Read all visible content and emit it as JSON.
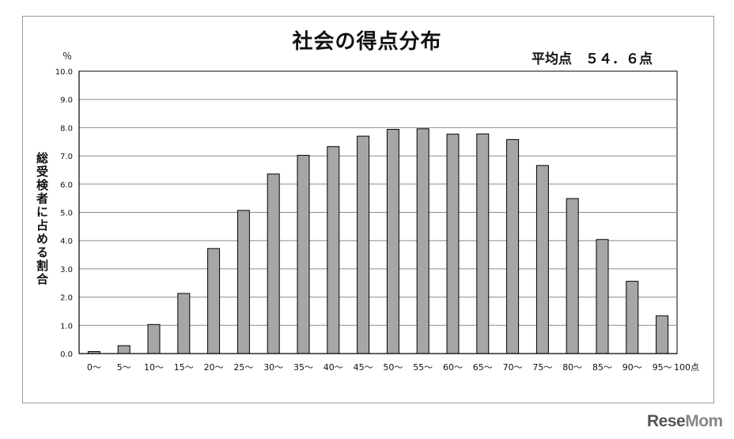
{
  "chart_data": {
    "type": "bar",
    "title": "社会の得点分布",
    "annotation": "平均点　５４．６点",
    "unit_label": "％",
    "ylabel": "総受検者に占める割合",
    "y_ticks": [
      "0.0",
      "1.0",
      "2.0",
      "3.0",
      "4.0",
      "5.0",
      "6.0",
      "7.0",
      "8.0",
      "9.0",
      "10.0"
    ],
    "ylim": [
      0,
      10
    ],
    "grid": true,
    "categories": [
      "0～",
      "5～",
      "10～",
      "15～",
      "20～",
      "25～",
      "30～",
      "35～",
      "40～",
      "45～",
      "50～",
      "55～",
      "60～",
      "65～",
      "70～",
      "75～",
      "80～",
      "85～",
      "90～",
      "95～"
    ],
    "end_label": "100点",
    "values": [
      0.07,
      0.28,
      1.03,
      2.13,
      3.72,
      5.07,
      6.36,
      7.02,
      7.33,
      7.7,
      7.94,
      7.96,
      7.77,
      7.78,
      7.58,
      6.66,
      5.49,
      4.04,
      2.56,
      1.34
    ],
    "colors": {
      "bar": "#a6a6a6",
      "bar_stroke": "#000000",
      "grid": "#8c8c8c"
    }
  },
  "watermark": "ReseMom"
}
